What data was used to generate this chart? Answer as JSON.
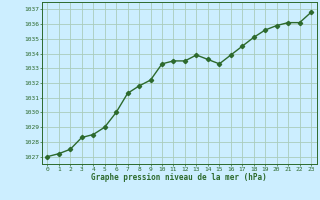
{
  "x": [
    0,
    1,
    2,
    3,
    4,
    5,
    6,
    7,
    8,
    9,
    10,
    11,
    12,
    13,
    14,
    15,
    16,
    17,
    18,
    19,
    20,
    21,
    22,
    23
  ],
  "y": [
    1027.0,
    1027.2,
    1027.5,
    1028.3,
    1028.5,
    1029.0,
    1030.0,
    1031.3,
    1031.8,
    1032.2,
    1033.3,
    1033.5,
    1033.5,
    1033.9,
    1033.6,
    1033.3,
    1033.9,
    1034.5,
    1035.1,
    1035.6,
    1035.9,
    1036.1,
    1036.1,
    1036.8
  ],
  "ylim": [
    1026.5,
    1037.5
  ],
  "yticks": [
    1027,
    1028,
    1029,
    1030,
    1031,
    1032,
    1033,
    1034,
    1035,
    1036,
    1037
  ],
  "xticks": [
    0,
    1,
    2,
    3,
    4,
    5,
    6,
    7,
    8,
    9,
    10,
    11,
    12,
    13,
    14,
    15,
    16,
    17,
    18,
    19,
    20,
    21,
    22,
    23
  ],
  "xlabel": "Graphe pression niveau de la mer (hPa)",
  "line_color": "#2d6a2d",
  "marker": "D",
  "marker_size": 2.2,
  "bg_color": "#cceeff",
  "grid_color": "#aaccbb",
  "tick_color": "#2d6a2d",
  "xlabel_color": "#2d6a2d",
  "linewidth": 1.0
}
